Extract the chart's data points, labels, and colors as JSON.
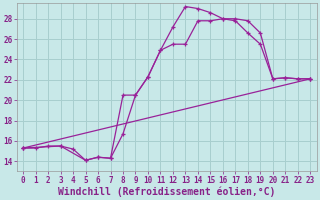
{
  "background_color": "#c8e8e8",
  "grid_color": "#a8cece",
  "line_color": "#992299",
  "xlabel": "Windchill (Refroidissement éolien,°C)",
  "xlim": [
    -0.5,
    23.5
  ],
  "ylim": [
    13.0,
    29.5
  ],
  "yticks": [
    14,
    16,
    18,
    20,
    22,
    24,
    26,
    28
  ],
  "xticks": [
    0,
    1,
    2,
    3,
    4,
    5,
    6,
    7,
    8,
    9,
    10,
    11,
    12,
    13,
    14,
    15,
    16,
    17,
    18,
    19,
    20,
    21,
    22,
    23
  ],
  "line1_x": [
    0,
    1,
    2,
    3,
    4,
    5,
    6,
    7,
    8,
    9,
    10,
    11,
    12,
    13,
    14,
    15,
    16,
    17,
    18,
    19,
    20,
    21,
    22,
    23
  ],
  "line1_y": [
    15.3,
    15.3,
    15.5,
    15.5,
    15.2,
    14.1,
    14.4,
    14.3,
    16.7,
    20.5,
    22.3,
    24.9,
    27.2,
    29.2,
    29.0,
    28.6,
    28.0,
    28.0,
    27.8,
    26.6,
    22.1,
    22.2,
    22.1,
    22.1
  ],
  "line2_x": [
    0,
    3,
    5,
    6,
    7,
    8,
    9,
    10,
    11,
    12,
    13,
    14,
    15,
    16,
    17,
    18,
    19,
    20,
    21,
    22,
    23
  ],
  "line2_y": [
    15.3,
    15.5,
    14.1,
    14.4,
    14.3,
    20.5,
    20.5,
    22.3,
    24.9,
    25.5,
    25.5,
    27.8,
    27.8,
    28.0,
    27.8,
    26.6,
    25.5,
    22.1,
    22.2,
    22.1,
    22.1
  ],
  "line3_x": [
    0,
    23
  ],
  "line3_y": [
    15.3,
    22.1
  ],
  "font_color": "#882288",
  "tick_fontsize": 5.5,
  "label_fontsize": 7.0
}
